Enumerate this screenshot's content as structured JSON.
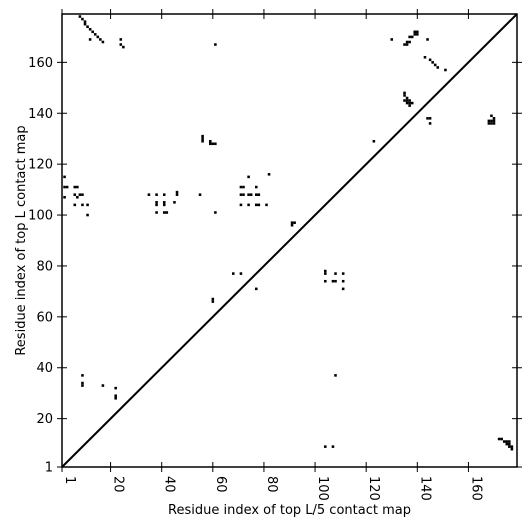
{
  "chart_data": {
    "type": "scatter",
    "subtype": "contact-map",
    "xlabel": "Residue index of top L/5 contact map",
    "ylabel": "Residue index of top L contact map",
    "xlim": [
      1,
      179
    ],
    "ylim": [
      1,
      179
    ],
    "xticks": [
      1,
      20,
      40,
      60,
      80,
      100,
      120,
      140,
      160
    ],
    "yticks": [
      1,
      20,
      40,
      60,
      80,
      100,
      120,
      140,
      160
    ],
    "diagonal": true,
    "marker_color": "#000000",
    "series": [
      {
        "name": "",
        "points": [
          [
            8,
            178
          ],
          [
            9,
            177
          ],
          [
            10,
            176
          ],
          [
            10,
            175
          ],
          [
            11,
            174
          ],
          [
            12,
            173
          ],
          [
            13,
            172
          ],
          [
            14,
            171
          ],
          [
            15,
            170
          ],
          [
            16,
            169
          ],
          [
            17,
            168
          ],
          [
            12,
            169
          ],
          [
            24,
            169
          ],
          [
            24,
            167
          ],
          [
            25,
            166
          ],
          [
            61,
            167
          ],
          [
            130,
            169
          ],
          [
            137,
            170
          ],
          [
            138,
            170
          ],
          [
            139,
            171
          ],
          [
            139,
            172
          ],
          [
            140,
            171
          ],
          [
            140,
            172
          ],
          [
            136,
            168
          ],
          [
            137,
            168
          ],
          [
            135,
            167
          ],
          [
            136,
            167
          ],
          [
            144,
            169
          ],
          [
            143,
            162
          ],
          [
            145,
            161
          ],
          [
            146,
            160
          ],
          [
            147,
            159
          ],
          [
            148,
            158
          ],
          [
            151,
            157
          ],
          [
            135,
            148
          ],
          [
            135,
            147
          ],
          [
            136,
            146
          ],
          [
            135,
            145
          ],
          [
            136,
            145
          ],
          [
            137,
            145
          ],
          [
            136,
            144
          ],
          [
            137,
            144
          ],
          [
            138,
            144
          ],
          [
            137,
            143
          ],
          [
            144,
            138
          ],
          [
            145,
            138
          ],
          [
            145,
            136
          ],
          [
            168,
            136
          ],
          [
            168,
            137
          ],
          [
            169,
            136
          ],
          [
            169,
            137
          ],
          [
            170,
            137
          ],
          [
            170,
            136
          ],
          [
            170,
            138
          ],
          [
            169,
            139
          ],
          [
            123,
            129
          ],
          [
            56,
            131
          ],
          [
            56,
            130
          ],
          [
            56,
            129
          ],
          [
            59,
            129
          ],
          [
            59,
            128
          ],
          [
            60,
            128
          ],
          [
            61,
            128
          ],
          [
            82,
            116
          ],
          [
            2,
            115
          ],
          [
            2,
            111
          ],
          [
            3,
            111
          ],
          [
            6,
            111
          ],
          [
            7,
            111
          ],
          [
            2,
            107
          ],
          [
            6,
            108
          ],
          [
            7,
            107
          ],
          [
            6,
            104
          ],
          [
            8,
            108
          ],
          [
            9,
            108
          ],
          [
            9,
            104
          ],
          [
            11,
            104
          ],
          [
            11,
            100
          ],
          [
            35,
            108
          ],
          [
            38,
            108
          ],
          [
            41,
            108
          ],
          [
            38,
            105
          ],
          [
            38,
            104
          ],
          [
            41,
            105
          ],
          [
            41,
            104
          ],
          [
            38,
            101
          ],
          [
            41,
            101
          ],
          [
            42,
            101
          ],
          [
            46,
            109
          ],
          [
            46,
            108
          ],
          [
            45,
            105
          ],
          [
            55,
            108
          ],
          [
            61,
            101
          ],
          [
            71,
            111
          ],
          [
            72,
            111
          ],
          [
            71,
            108
          ],
          [
            72,
            108
          ],
          [
            74,
            108
          ],
          [
            71,
            104
          ],
          [
            74,
            104
          ],
          [
            75,
            108
          ],
          [
            77,
            111
          ],
          [
            77,
            108
          ],
          [
            78,
            108
          ],
          [
            77,
            104
          ],
          [
            78,
            104
          ],
          [
            81,
            104
          ],
          [
            74,
            115
          ],
          [
            91,
            97
          ],
          [
            92,
            97
          ],
          [
            91,
            96
          ],
          [
            68,
            77
          ],
          [
            71,
            77
          ],
          [
            60,
            67
          ],
          [
            60,
            66
          ],
          [
            77,
            71
          ],
          [
            104,
            78
          ],
          [
            104,
            77
          ],
          [
            104,
            74
          ],
          [
            108,
            77
          ],
          [
            107,
            74
          ],
          [
            108,
            74
          ],
          [
            111,
            77
          ],
          [
            111,
            74
          ],
          [
            111,
            71
          ],
          [
            108,
            37
          ],
          [
            9,
            37
          ],
          [
            9,
            34
          ],
          [
            9,
            33
          ],
          [
            17,
            33
          ],
          [
            22,
            32
          ],
          [
            22,
            29
          ],
          [
            22,
            28
          ],
          [
            104,
            9
          ],
          [
            107,
            9
          ],
          [
            172,
            12
          ],
          [
            173,
            12
          ],
          [
            174,
            11
          ],
          [
            175,
            11
          ],
          [
            175,
            10
          ],
          [
            176,
            10
          ],
          [
            176,
            9
          ],
          [
            177,
            9
          ],
          [
            177,
            8
          ],
          [
            176,
            11
          ]
        ]
      }
    ]
  }
}
